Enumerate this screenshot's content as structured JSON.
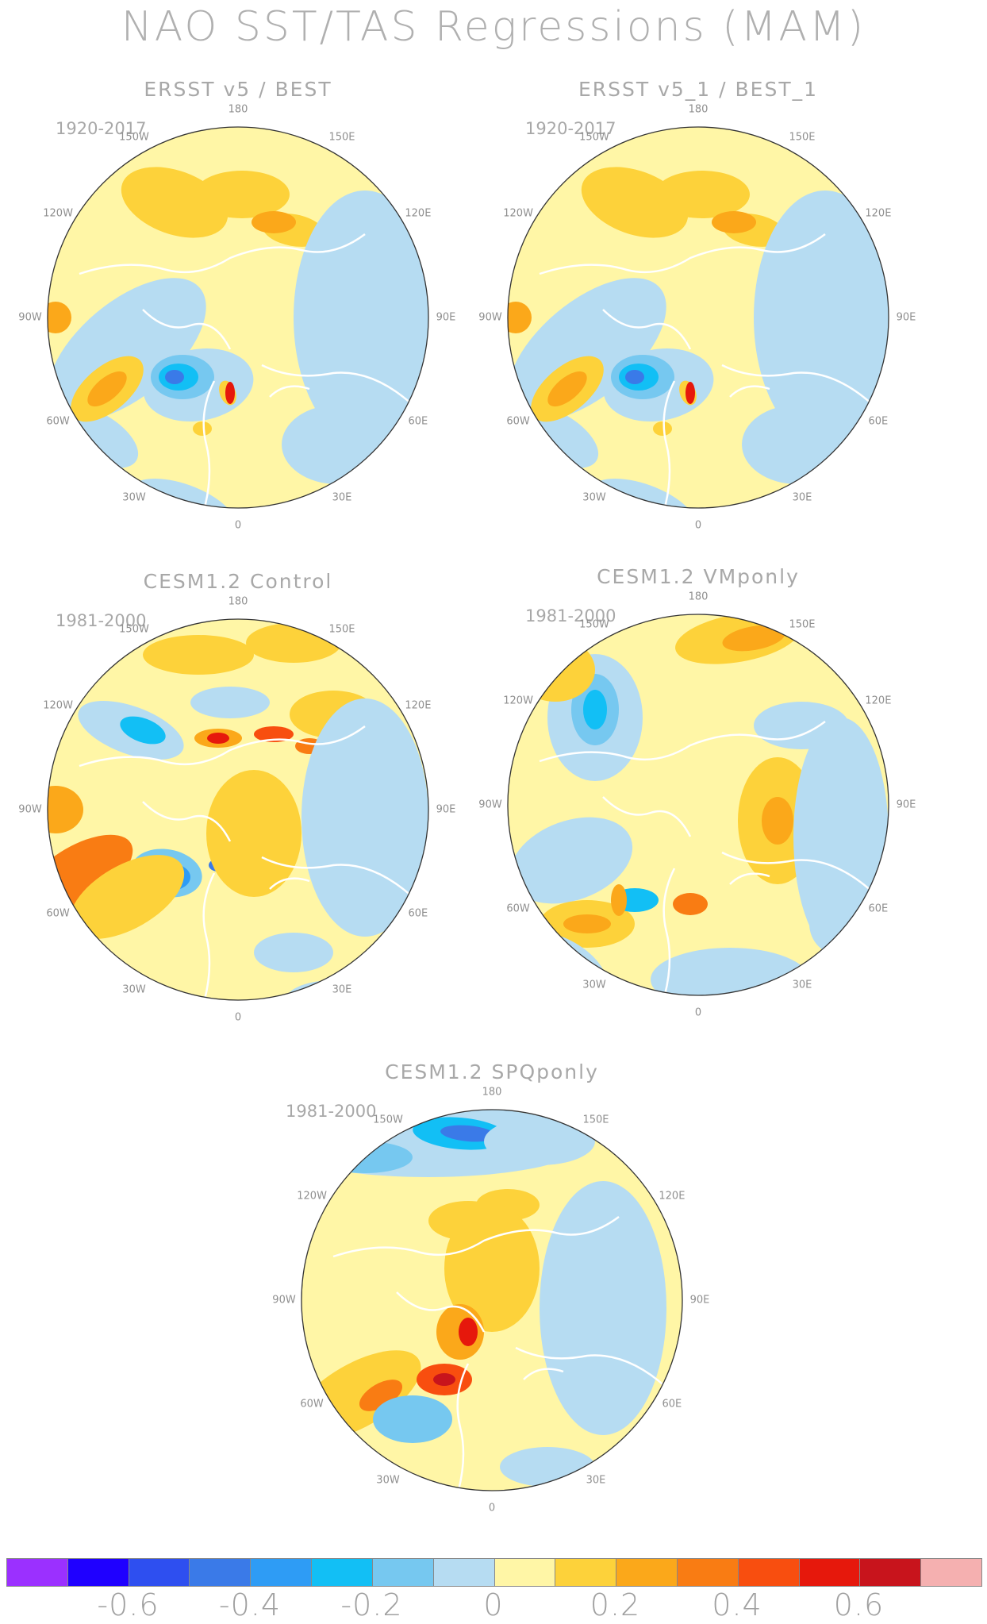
{
  "title": "NAO SST/TAS Regressions (MAM)",
  "panels": [
    {
      "id": "p1",
      "title": "ERSST v5 / BEST",
      "period": "1920-2017",
      "pattern": "obs"
    },
    {
      "id": "p2",
      "title": "ERSST v5_1 / BEST_1",
      "period": "1920-2017",
      "pattern": "obs"
    },
    {
      "id": "p3",
      "title": "CESM1.2 Control",
      "period": "1981-2000",
      "pattern": "control"
    },
    {
      "id": "p4",
      "title": "CESM1.2 VMponly",
      "period": "1981-2000",
      "pattern": "vmp"
    },
    {
      "id": "p5",
      "title": "CESM1.2 SPQponly",
      "period": "1981-2000",
      "pattern": "spq"
    }
  ],
  "longitude_labels": [
    "180",
    "150E",
    "120E",
    "90E",
    "60E",
    "30E",
    "0",
    "30W",
    "60W",
    "90W",
    "120W",
    "150W"
  ],
  "colorbar": {
    "colors": [
      "#9b30ff",
      "#1f00ff",
      "#2e4ff0",
      "#3a7ae8",
      "#2e9cf5",
      "#12bff5",
      "#76c8f0",
      "#b6dcf2",
      "#fff6a6",
      "#fdd23a",
      "#fba81a",
      "#f97c13",
      "#f84e0f",
      "#e6180c",
      "#c8141c",
      "#f5b0b0"
    ],
    "labels": [
      "-0.6",
      "-0.4",
      "-0.2",
      "0",
      "0.2",
      "0.4",
      "0.6"
    ]
  }
}
